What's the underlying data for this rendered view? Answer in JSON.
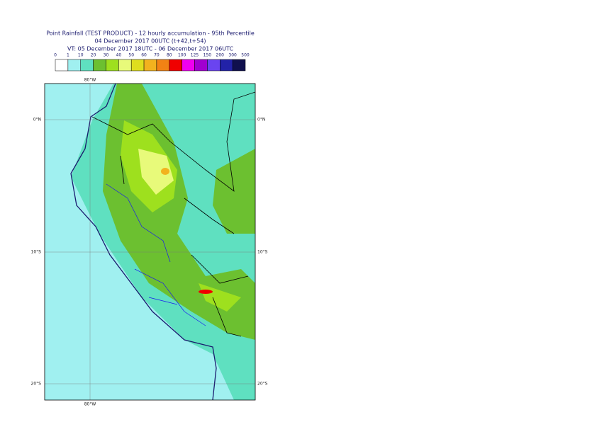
{
  "header": {
    "title": "Point Rainfall (TEST PRODUCT) - 12 hourly accumulation - 95th Percentile",
    "base_time": "04 December 2017 00UTC (t+42,t+54)",
    "valid_time": "VT: 05 December 2017 18UTC - 06 December 2017 06UTC"
  },
  "legend": {
    "ticks": [
      0,
      1,
      10,
      20,
      30,
      40,
      50,
      60,
      70,
      80,
      100,
      125,
      150,
      200,
      300,
      500
    ],
    "colors": [
      "#ffffff",
      "#a0f0f0",
      "#5fe0c0",
      "#6cc030",
      "#9ee01e",
      "#e8fa7a",
      "#dede1e",
      "#f2b21e",
      "#f28214",
      "#f00000",
      "#f000f0",
      "#a000d0",
      "#6a44f0",
      "#2222a8",
      "#10104e"
    ]
  },
  "map": {
    "lon_label": "80°W",
    "lat_labels": [
      "0°N",
      "10°S",
      "20°S"
    ]
  }
}
